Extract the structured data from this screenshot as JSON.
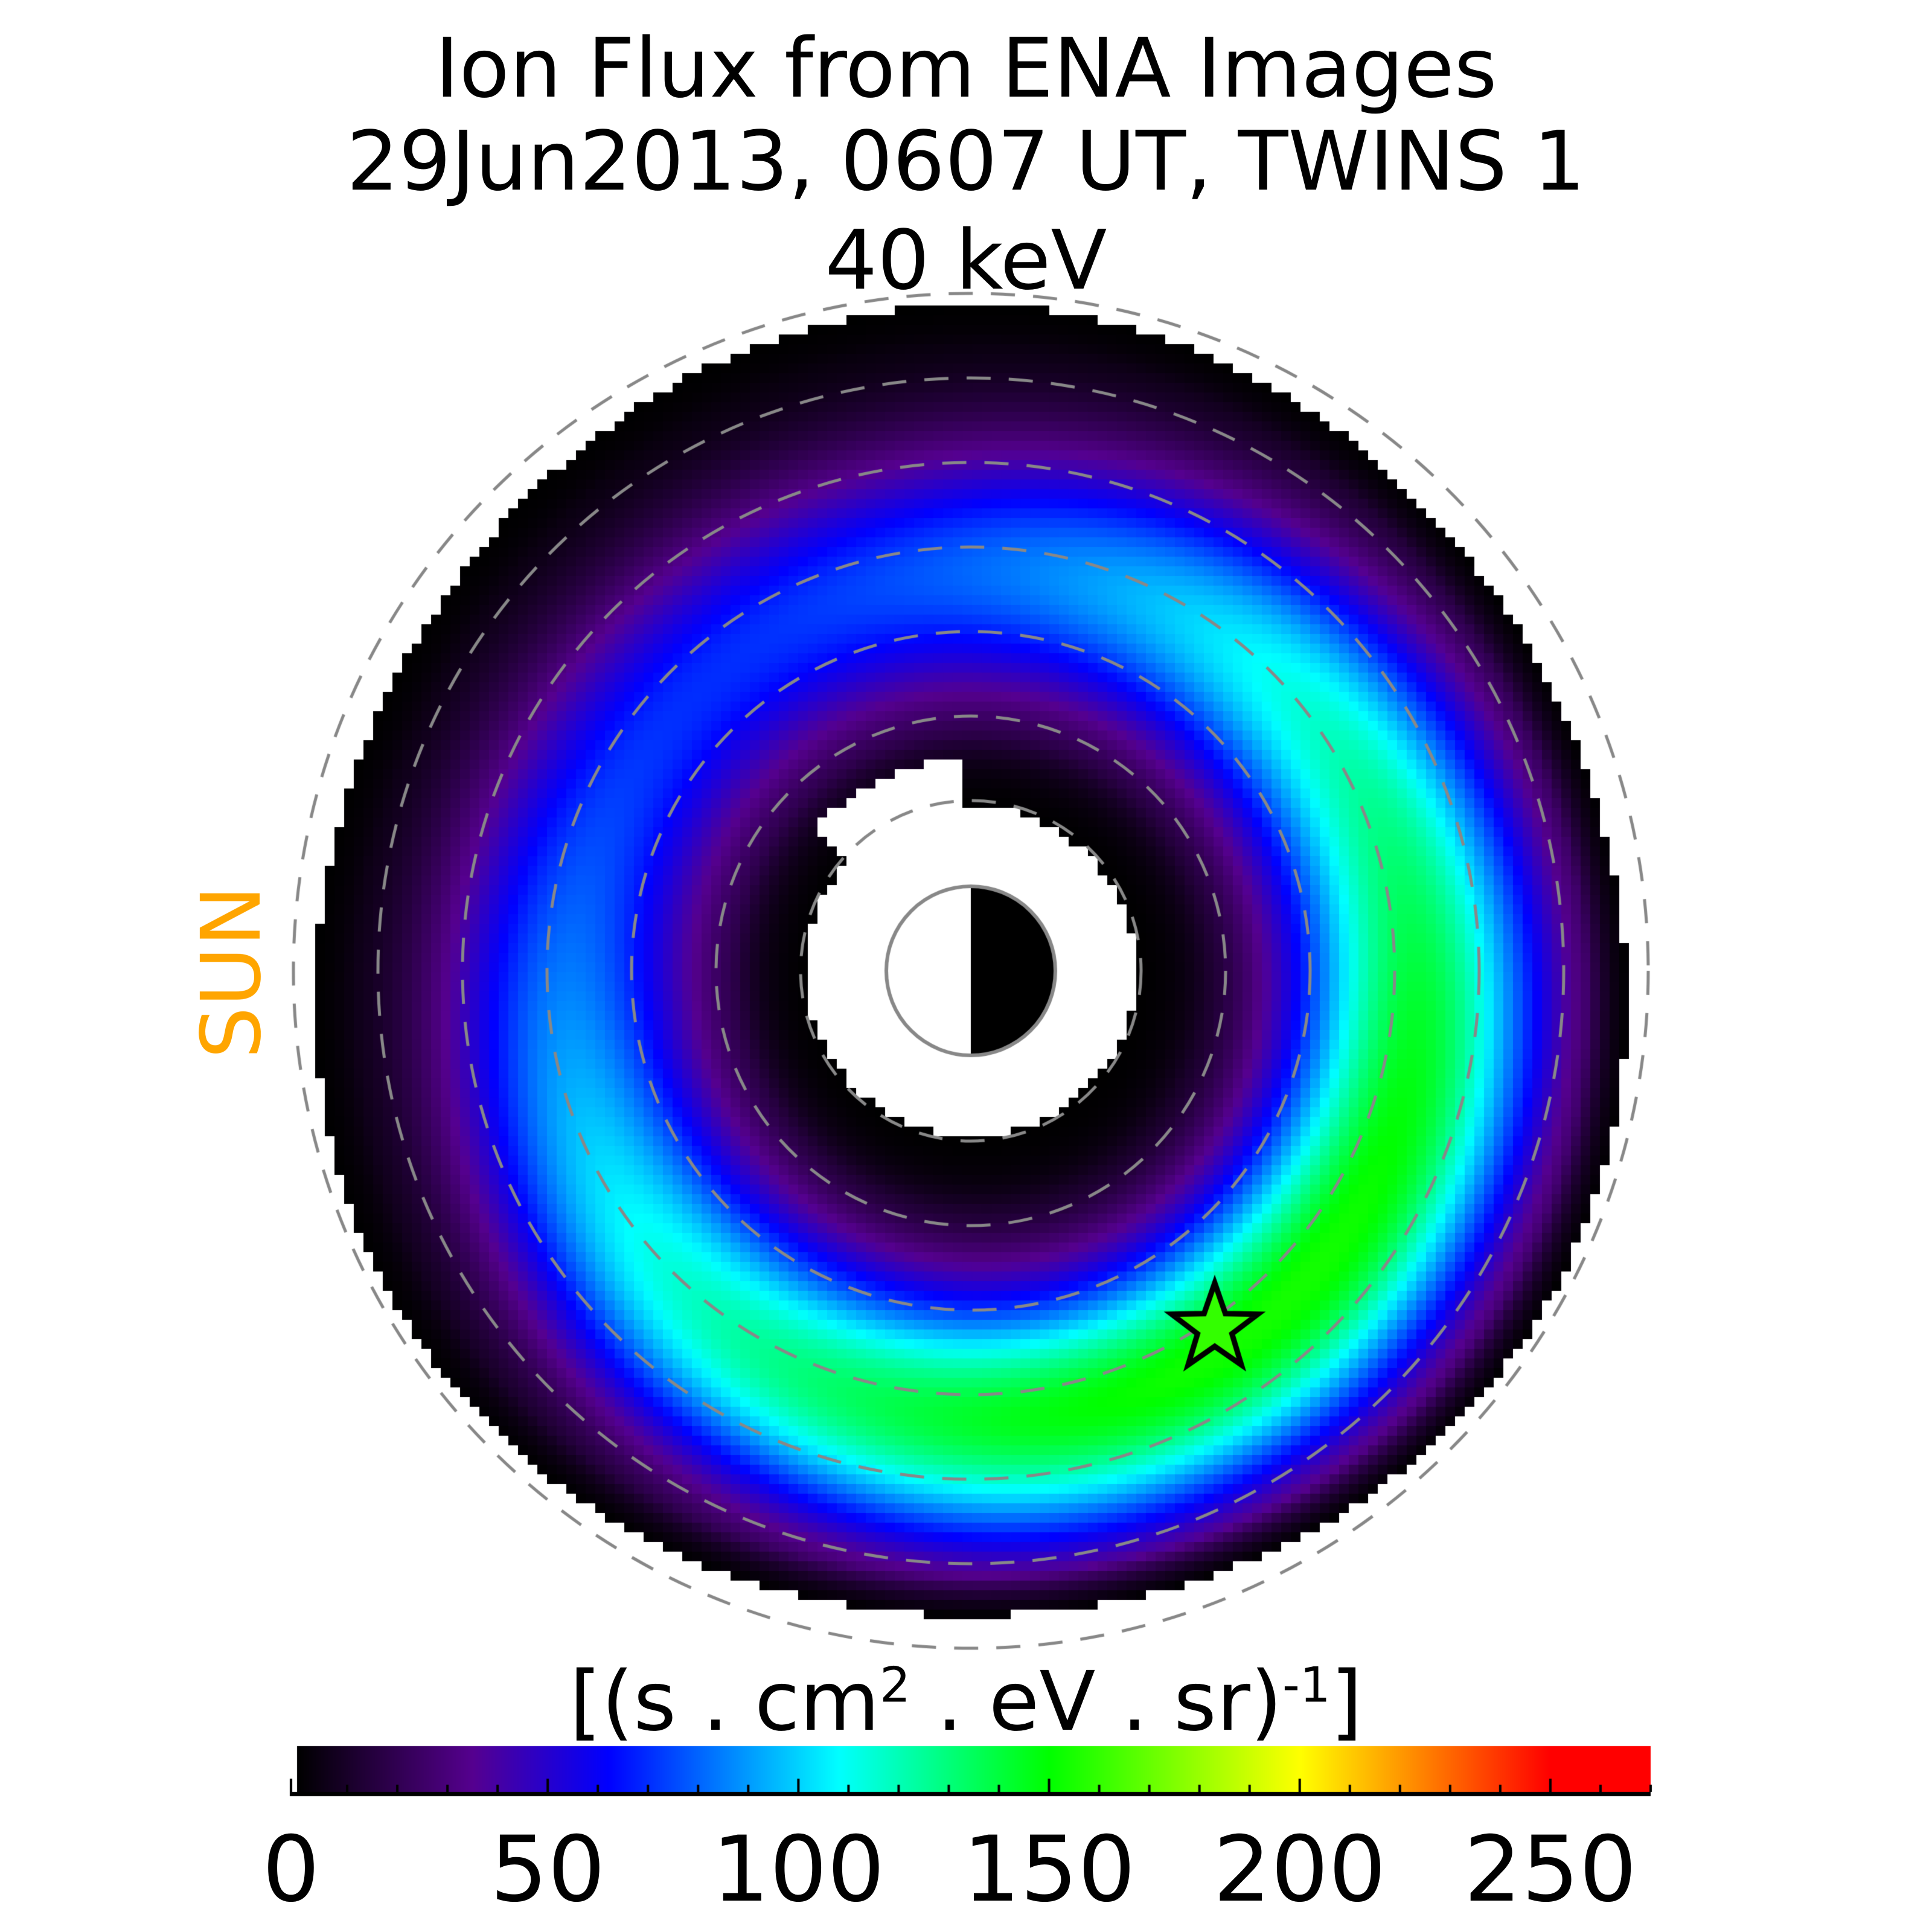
{
  "title": {
    "line1": "Ion Flux from  ENA Images",
    "line2": "29Jun2013, 0607 UT,  TWINS 1",
    "line3": "40 keV"
  },
  "sun_label": "SUN",
  "colors": {
    "sun_label": "#FFA500",
    "rings": "#888888",
    "star_fill": "#33FF00"
  },
  "chart_data": {
    "type": "heatmap",
    "title": "Ion Flux from  ENA Images 29Jun2013, 0607 UT,  TWINS 1 40 keV",
    "projection": "polar equatorial map centered on Earth, sun to the left",
    "dashed_rings_re": [
      2,
      3,
      4,
      5,
      6,
      7,
      8
    ],
    "colorbar": {
      "label_parts": {
        "open": "[(s . cm",
        "sq": "2",
        "mid": "  . eV . sr)",
        "exp": "-1",
        "close": "]"
      },
      "range": [
        0,
        270
      ],
      "ticks": [
        "0",
        "50",
        "100",
        "150",
        "200",
        "250"
      ],
      "tick_values": [
        0,
        50,
        100,
        150,
        200,
        250
      ],
      "minor_step": 10,
      "colormap": [
        "#000000",
        "#55008f",
        "#0000ff",
        "#00ffff",
        "#00ff00",
        "#ffff00",
        "#ff0000"
      ]
    },
    "flux_peak_approx": 150,
    "peak_region": "lower-right (dusk side), ~5 RE",
    "marker": "star at peak flux location"
  }
}
